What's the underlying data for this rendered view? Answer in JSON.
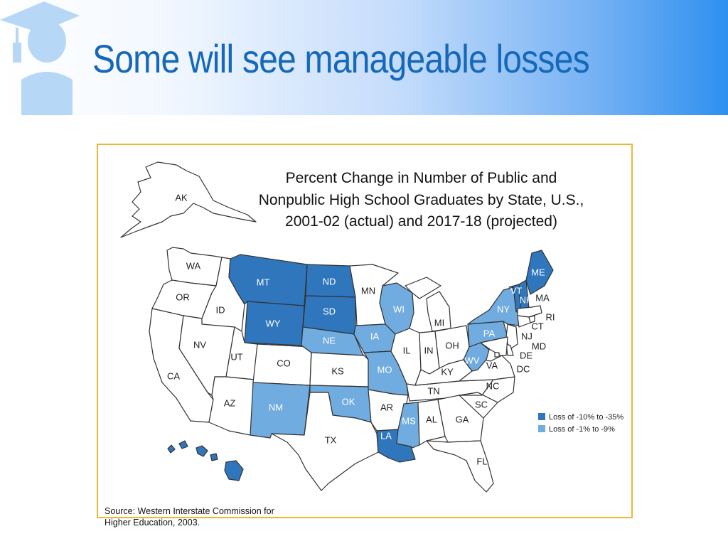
{
  "slide": {
    "title": "Some will see manageable losses",
    "logo_icon": "graduate-icon"
  },
  "map": {
    "title_lines": [
      "Percent Change in Number of Public and",
      "Nonpublic High School Graduates by State, U.S.,",
      "2001-02 (actual) and 2017-18 (projected)"
    ],
    "source_lines": [
      "Source: Western Interstate Commission for",
      "Higher Education, 2003."
    ],
    "colors": {
      "high_loss": "#2f76bd",
      "mid_loss": "#70acdf",
      "no_loss": "#ffffff",
      "text_on_dark": "#ffffff",
      "text_on_light": "#222222"
    },
    "legend": [
      {
        "category": "high_loss",
        "label": "Loss of -10% to -35%"
      },
      {
        "category": "mid_loss",
        "label": "Loss of -1% to -9%"
      }
    ],
    "states": [
      {
        "abbr": "AK",
        "category": "no_loss"
      },
      {
        "abbr": "HI",
        "category": "high_loss"
      },
      {
        "abbr": "WA",
        "category": "no_loss"
      },
      {
        "abbr": "OR",
        "category": "no_loss"
      },
      {
        "abbr": "CA",
        "category": "no_loss"
      },
      {
        "abbr": "ID",
        "category": "no_loss"
      },
      {
        "abbr": "NV",
        "category": "no_loss"
      },
      {
        "abbr": "MT",
        "category": "high_loss"
      },
      {
        "abbr": "WY",
        "category": "high_loss"
      },
      {
        "abbr": "UT",
        "category": "no_loss"
      },
      {
        "abbr": "AZ",
        "category": "no_loss"
      },
      {
        "abbr": "CO",
        "category": "no_loss"
      },
      {
        "abbr": "NM",
        "category": "mid_loss"
      },
      {
        "abbr": "ND",
        "category": "high_loss"
      },
      {
        "abbr": "SD",
        "category": "high_loss"
      },
      {
        "abbr": "NE",
        "category": "mid_loss"
      },
      {
        "abbr": "KS",
        "category": "no_loss"
      },
      {
        "abbr": "OK",
        "category": "mid_loss"
      },
      {
        "abbr": "TX",
        "category": "no_loss"
      },
      {
        "abbr": "MN",
        "category": "no_loss"
      },
      {
        "abbr": "IA",
        "category": "mid_loss"
      },
      {
        "abbr": "MO",
        "category": "mid_loss"
      },
      {
        "abbr": "AR",
        "category": "no_loss"
      },
      {
        "abbr": "LA",
        "category": "high_loss"
      },
      {
        "abbr": "WI",
        "category": "mid_loss"
      },
      {
        "abbr": "IL",
        "category": "no_loss"
      },
      {
        "abbr": "MS",
        "category": "mid_loss"
      },
      {
        "abbr": "MI",
        "category": "no_loss"
      },
      {
        "abbr": "IN",
        "category": "no_loss"
      },
      {
        "abbr": "OH",
        "category": "no_loss"
      },
      {
        "abbr": "KY",
        "category": "no_loss"
      },
      {
        "abbr": "TN",
        "category": "no_loss"
      },
      {
        "abbr": "AL",
        "category": "no_loss"
      },
      {
        "abbr": "GA",
        "category": "no_loss"
      },
      {
        "abbr": "FL",
        "category": "no_loss"
      },
      {
        "abbr": "SC",
        "category": "no_loss"
      },
      {
        "abbr": "NC",
        "category": "no_loss"
      },
      {
        "abbr": "VA",
        "category": "no_loss"
      },
      {
        "abbr": "WV",
        "category": "mid_loss"
      },
      {
        "abbr": "PA",
        "category": "mid_loss"
      },
      {
        "abbr": "NY",
        "category": "mid_loss"
      },
      {
        "abbr": "VT",
        "category": "high_loss"
      },
      {
        "abbr": "NH",
        "category": "high_loss"
      },
      {
        "abbr": "ME",
        "category": "high_loss"
      },
      {
        "abbr": "MA",
        "category": "no_loss"
      },
      {
        "abbr": "RI",
        "category": "no_loss"
      },
      {
        "abbr": "CT",
        "category": "no_loss"
      },
      {
        "abbr": "NJ",
        "category": "no_loss"
      },
      {
        "abbr": "DE",
        "category": "no_loss"
      },
      {
        "abbr": "MD",
        "category": "no_loss"
      },
      {
        "abbr": "DC",
        "category": "no_loss"
      }
    ]
  }
}
